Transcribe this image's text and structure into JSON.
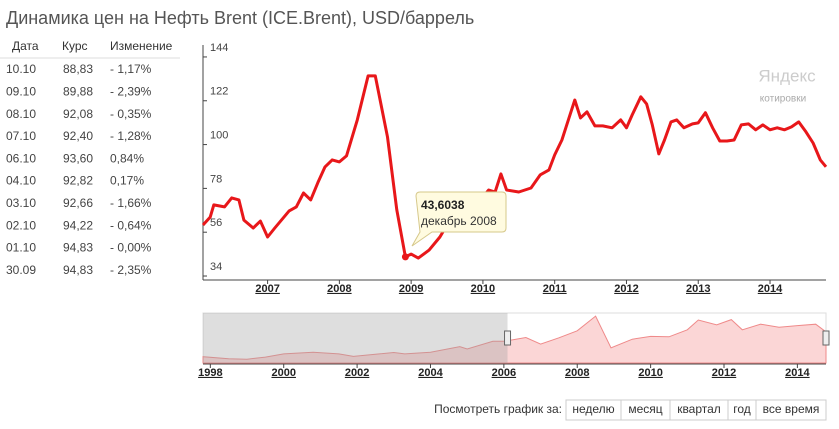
{
  "header": {
    "title": "Динамика цен на Нефть Brent (ICE.Brent), USD/баррель"
  },
  "table": {
    "columns": [
      "Дата",
      "Курс",
      "Изменение"
    ],
    "rows": [
      [
        "10.10",
        "88,83",
        "- 1,17%"
      ],
      [
        "09.10",
        "89,88",
        "- 2,39%"
      ],
      [
        "08.10",
        "92,08",
        "- 0,35%"
      ],
      [
        "07.10",
        "92,40",
        "- 1,28%"
      ],
      [
        "06.10",
        "93,60",
        "0,84%"
      ],
      [
        "04.10",
        "92,82",
        "0,17%"
      ],
      [
        "03.10",
        "92,66",
        "- 1,66%"
      ],
      [
        "02.10",
        "94,22",
        "- 0,64%"
      ],
      [
        "01.10",
        "94,83",
        "- 0,00%"
      ],
      [
        "30.09",
        "94,83",
        "- 2,35%"
      ]
    ]
  },
  "logo": {
    "name": "Яндекс",
    "subtitle": "котировки"
  },
  "tooltip": {
    "value": "43,6038",
    "date": "декабрь 2008"
  },
  "controls": {
    "label": "Посмотреть график за:",
    "buttons": [
      "неделю",
      "месяц",
      "квартал",
      "год",
      "все время"
    ]
  },
  "chart_data": [
    {
      "type": "line",
      "color": "#e8171a",
      "x": [
        2006.1,
        2006.2,
        2006.25,
        2006.4,
        2006.5,
        2006.6,
        2006.67,
        2006.8,
        2006.9,
        2007.0,
        2007.1,
        2007.3,
        2007.4,
        2007.5,
        2007.6,
        2007.7,
        2007.8,
        2007.9,
        2008.0,
        2008.1,
        2008.25,
        2008.4,
        2008.5,
        2008.67,
        2008.8,
        2008.92,
        2009.0,
        2009.1,
        2009.25,
        2009.4,
        2009.5,
        2009.67,
        2009.8,
        2009.9,
        2010.0,
        2010.08,
        2010.17,
        2010.25,
        2010.33,
        2010.5,
        2010.67,
        2010.8,
        2010.92,
        2011.0,
        2011.1,
        2011.2,
        2011.28,
        2011.36,
        2011.45,
        2011.56,
        2011.67,
        2011.8,
        2011.92,
        2012.0,
        2012.08,
        2012.2,
        2012.28,
        2012.36,
        2012.45,
        2012.53,
        2012.62,
        2012.7,
        2012.8,
        2012.92,
        2013.0,
        2013.1,
        2013.2,
        2013.3,
        2013.4,
        2013.5,
        2013.6,
        2013.7,
        2013.8,
        2013.9,
        2014.0,
        2014.1,
        2014.2,
        2014.3,
        2014.4,
        2014.5,
        2014.6,
        2014.7,
        2014.78
      ],
      "values": [
        59.6,
        63.6,
        69.7,
        68.7,
        73.2,
        72.2,
        62.1,
        58.1,
        61.6,
        53.6,
        58.1,
        66.7,
        68.7,
        75.7,
        72.2,
        80.8,
        88.8,
        92.3,
        91.3,
        94.3,
        112.4,
        134.5,
        134.5,
        103.8,
        67.2,
        43.6038,
        45,
        43,
        47,
        53.6,
        59.6,
        68,
        73,
        75.7,
        73.7,
        77.2,
        76.2,
        85.3,
        77.2,
        76.2,
        78.2,
        84.8,
        87.3,
        94.8,
        102.3,
        113.4,
        122.4,
        113.4,
        116.4,
        109.4,
        109.4,
        108.4,
        112.4,
        108.4,
        114.9,
        124,
        120.4,
        109.9,
        95.3,
        102.3,
        111.4,
        112.4,
        108.4,
        110.4,
        110.9,
        116,
        108.4,
        101.8,
        101.8,
        102.3,
        109.9,
        110.4,
        107.4,
        109.9,
        107.4,
        108.4,
        107.4,
        108.9,
        111.4,
        106.4,
        100.8,
        92.3,
        88.83
      ],
      "xlim": [
        2006.1,
        2014.78
      ],
      "xticks": [
        2007,
        2008,
        2009,
        2010,
        2011,
        2012,
        2013,
        2014
      ],
      "ylim": [
        32,
        150
      ],
      "yticks": [
        34,
        56,
        78,
        100,
        122,
        144
      ],
      "grid": false
    },
    {
      "type": "area",
      "color": "#e8171a",
      "x": [
        1997.8,
        1998.5,
        1999.0,
        1999.5,
        2000.0,
        2000.8,
        2001.5,
        2001.9,
        2002.5,
        2003.0,
        2003.3,
        2004.0,
        2004.8,
        2005.0,
        2005.7,
        2006.0,
        2006.6,
        2007.0,
        2007.5,
        2008.0,
        2008.5,
        2008.92,
        2009.5,
        2010.0,
        2010.5,
        2011.0,
        2011.3,
        2011.8,
        2012.2,
        2012.5,
        2013.0,
        2013.5,
        2014.0,
        2014.5,
        2014.78
      ],
      "values": [
        18,
        12,
        11,
        17,
        26,
        31,
        26,
        19,
        25,
        30,
        26,
        31,
        47,
        40,
        62,
        62,
        73,
        54,
        72,
        92,
        134,
        43.6,
        68,
        76,
        75,
        95,
        123,
        109,
        124,
        95,
        111,
        102,
        107,
        111,
        88.83
      ],
      "xlim": [
        1997.8,
        2014.78
      ],
      "xticks": [
        1998,
        2000,
        2002,
        2004,
        2006,
        2008,
        2010,
        2012,
        2014
      ],
      "ylim": [
        0,
        143
      ]
    }
  ]
}
